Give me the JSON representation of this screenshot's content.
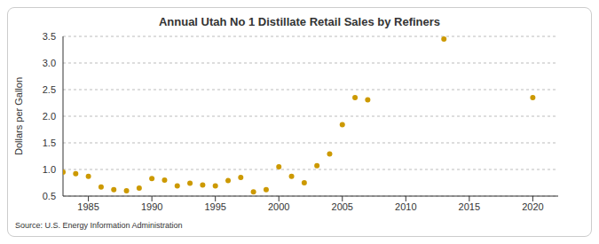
{
  "chart_data": {
    "type": "scatter",
    "title": "Annual Utah No 1 Distillate Retail Sales by Refiners",
    "ylabel": "Dollars per Gallon",
    "source": "Source: U.S. Energy Information Administration",
    "x": [
      1983,
      1984,
      1985,
      1986,
      1987,
      1988,
      1989,
      1990,
      1991,
      1992,
      1993,
      1994,
      1995,
      1996,
      1997,
      1998,
      1999,
      2000,
      2001,
      2002,
      2003,
      2004,
      2005,
      2006,
      2007,
      2013,
      2020
    ],
    "values": [
      0.95,
      0.92,
      0.87,
      0.67,
      0.62,
      0.6,
      0.65,
      0.83,
      0.8,
      0.69,
      0.74,
      0.71,
      0.69,
      0.79,
      0.85,
      0.58,
      0.62,
      1.05,
      0.87,
      0.75,
      1.07,
      1.29,
      1.84,
      2.35,
      2.31,
      3.45,
      2.35
    ],
    "color": "#cc9900",
    "marker": "circle",
    "xlim": [
      1983,
      2022
    ],
    "xticks": [
      1985,
      1990,
      1995,
      2000,
      2005,
      2010,
      2015,
      2020
    ],
    "ylim": [
      0.5,
      3.5
    ],
    "yticks": [
      0.5,
      {
        "value": 1,
        "label": "1.0"
      },
      1.5,
      {
        "value": 2,
        "label": "2.0"
      },
      2.5,
      {
        "value": 3,
        "label": "3.0"
      },
      3.5
    ],
    "grid": true
  }
}
